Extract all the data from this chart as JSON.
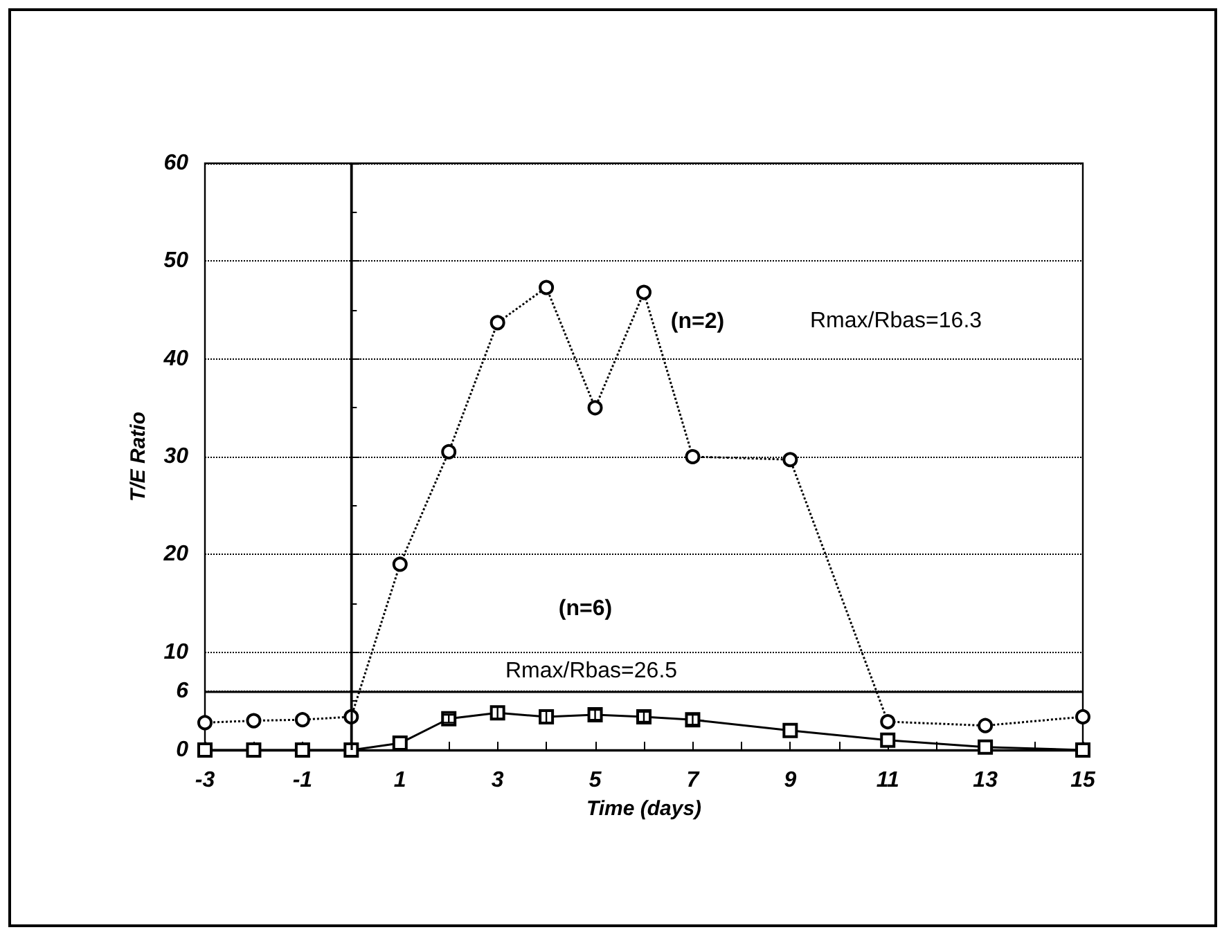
{
  "chart_data": {
    "type": "line",
    "xlabel": "Time (days)",
    "ylabel": "T/E Ratio",
    "x": [
      -3,
      -2,
      -1,
      0,
      1,
      2,
      3,
      4,
      5,
      6,
      7,
      9,
      11,
      13,
      15
    ],
    "series": [
      {
        "color": "#000000",
        "line_style": "dotted",
        "marker": "circle",
        "values": [
          2.8,
          3.0,
          3.1,
          3.4,
          19,
          30.5,
          43.7,
          47.3,
          35,
          46.8,
          30,
          29.7,
          2.9,
          2.5,
          3.4
        ]
      },
      {
        "color": "#000000",
        "line_style": "solid",
        "marker": "square",
        "values": [
          0,
          0,
          0,
          0,
          0.7,
          3.2,
          3.8,
          3.4,
          3.6,
          3.4,
          3.1,
          2.0,
          1.0,
          0.3,
          0
        ],
        "errors": [
          null,
          null,
          null,
          null,
          null,
          0.4,
          0.6,
          0.6,
          0.5,
          0.5,
          0.5,
          null,
          null,
          null,
          null
        ]
      }
    ],
    "xlim": [
      -3,
      15
    ],
    "xticks": [
      -3,
      {
        "value": -2,
        "label": null
      },
      -1,
      1,
      {
        "value": 2,
        "label": null
      },
      3,
      {
        "value": 4,
        "label": null
      },
      5,
      {
        "value": 6,
        "label": null
      },
      7,
      {
        "value": 8,
        "label": null
      },
      9,
      {
        "value": 10,
        "label": null
      },
      11,
      {
        "value": 12,
        "label": null
      },
      13,
      {
        "value": 14,
        "label": null
      },
      15
    ],
    "ylim": [
      0,
      60
    ],
    "yticks": [
      0,
      6,
      10,
      20,
      30,
      40,
      50,
      60
    ],
    "grid": "y",
    "ref_lines": [
      {
        "axis": "x",
        "value": 0,
        "color": "#000000",
        "line_style": "solid"
      },
      {
        "axis": "y",
        "value": 6,
        "color": "#000000",
        "line_style": "solid"
      }
    ],
    "annotations": [
      {
        "text": "(n=2)",
        "x": 7.1,
        "y": 43.8
      },
      "Rmax/Rbas=16.3",
      {
        "text": "(n=6)",
        "x": 4.8,
        "y": 14.4
      },
      "Rmax/Rbas=26.5"
    ]
  }
}
